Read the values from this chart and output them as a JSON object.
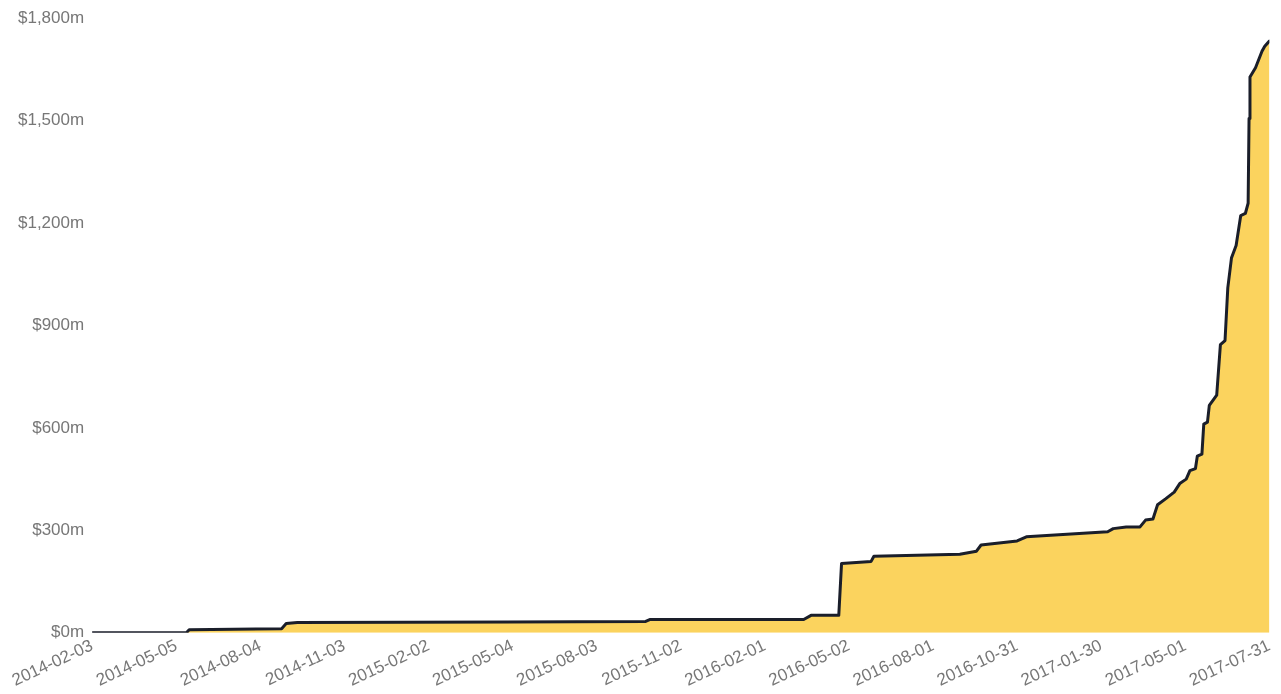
{
  "chart_data": {
    "type": "area",
    "grid": false,
    "legend": false,
    "marker": "none",
    "x": [
      "2014-02-03",
      "2014-05-16",
      "2014-05-19",
      "2014-08-27",
      "2014-09-01",
      "2014-09-13",
      "2015-09-25",
      "2015-09-30",
      "2016-03-14",
      "2016-03-22",
      "2016-04-21",
      "2016-04-24",
      "2016-05-26",
      "2016-05-29",
      "2016-08-30",
      "2016-09-17",
      "2016-09-22",
      "2016-10-31",
      "2016-11-10",
      "2017-02-06",
      "2017-02-12",
      "2017-02-26",
      "2017-03-13",
      "2017-03-19",
      "2017-03-27",
      "2017-04-01",
      "2017-04-10",
      "2017-04-19",
      "2017-04-25",
      "2017-05-02",
      "2017-05-06",
      "2017-05-12",
      "2017-05-14",
      "2017-05-19",
      "2017-05-21",
      "2017-05-25",
      "2017-05-27",
      "2017-06-04",
      "2017-06-08",
      "2017-06-13",
      "2017-06-16",
      "2017-06-20",
      "2017-06-25",
      "2017-06-30",
      "2017-07-05",
      "2017-07-08",
      "2017-07-09",
      "2017-07-10",
      "2017-07-16",
      "2017-07-23",
      "2017-07-26",
      "2017-07-31"
    ],
    "series": [
      {
        "color": "#fbd35e",
        "values": [
          0,
          0,
          9,
          12,
          27,
          30,
          33,
          39,
          39,
          51,
          51,
          203,
          209,
          224,
          230,
          239,
          257,
          269,
          281,
          296,
          305,
          310,
          310,
          330,
          333,
          375,
          393,
          412,
          437,
          450,
          475,
          481,
          517,
          523,
          611,
          617,
          666,
          696,
          844,
          856,
          1010,
          1098,
          1134,
          1222,
          1228,
          1258,
          1506,
          1628,
          1655,
          1703,
          1718,
          1733
        ]
      }
    ],
    "xlim": [
      "2014-02-03",
      "2017-07-31"
    ],
    "xticks": [
      "2014-02-03",
      "2014-05-05",
      "2014-08-04",
      "2014-11-03",
      "2015-02-02",
      "2015-05-04",
      "2015-08-03",
      "2015-11-02",
      "2016-02-01",
      "2016-05-02",
      "2016-08-01",
      "2016-10-31",
      "2017-01-30",
      "2017-05-01",
      "2017-07-31"
    ],
    "ylim": [
      0,
      1800
    ],
    "yticks": [
      {
        "value": 0,
        "label": "$0m"
      },
      {
        "value": 300,
        "label": "$300m"
      },
      {
        "value": 600,
        "label": "$600m"
      },
      {
        "value": 900,
        "label": "$900m"
      },
      {
        "value": 1200,
        "label": "$1,200m"
      },
      {
        "value": 1500,
        "label": "$1,500m"
      },
      {
        "value": 1800,
        "label": "$1,800m"
      }
    ]
  }
}
